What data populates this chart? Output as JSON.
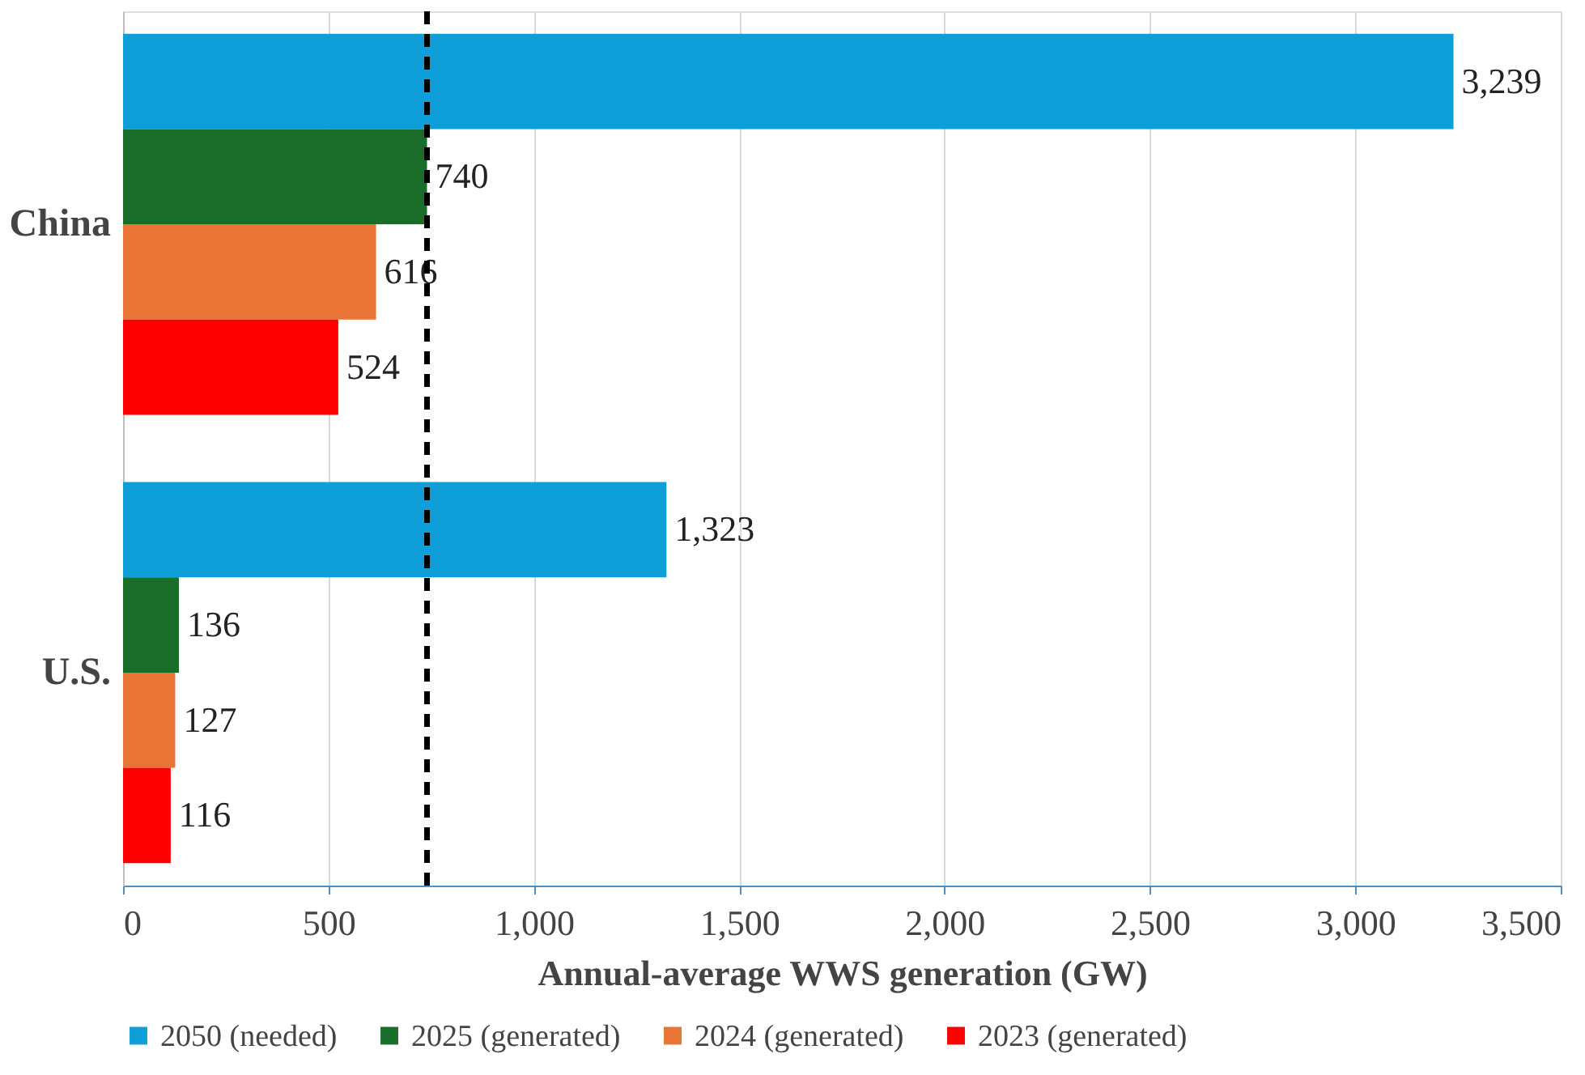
{
  "chart_data": {
    "type": "bar",
    "orientation": "horizontal",
    "xlabel": "Annual-average WWS generation (GW)",
    "categories": [
      "China",
      "U.S."
    ],
    "series": [
      {
        "name": "2050 (needed)",
        "color": "#0f9fd8",
        "values": [
          3239,
          1323
        ],
        "value_labels": [
          "3,239",
          "1,323"
        ]
      },
      {
        "name": "2025 (generated)",
        "color": "#1b6e2a",
        "values": [
          740,
          136
        ]
      },
      {
        "name": "2024 (generated)",
        "color": "#e87535",
        "values": [
          616,
          127
        ]
      },
      {
        "name": "2023 (generated)",
        "color": "#ff0000",
        "values": [
          524,
          116
        ]
      }
    ],
    "xlim": [
      0,
      3500
    ],
    "xticks": [
      0,
      500,
      {
        "value": 1000,
        "label": "1,000"
      },
      {
        "value": 1500,
        "label": "1,500"
      },
      {
        "value": 2000,
        "label": "2,000"
      },
      {
        "value": 2500,
        "label": "2,500"
      },
      {
        "value": 3000,
        "label": "3,000"
      },
      {
        "value": 3500,
        "label": "3,500"
      }
    ],
    "ref_lines": [
      {
        "axis": "x",
        "value": 740,
        "color": "#000000",
        "line_style": "dashed"
      }
    ],
    "data_labels": true,
    "grid": "x",
    "legend": "bottom"
  }
}
